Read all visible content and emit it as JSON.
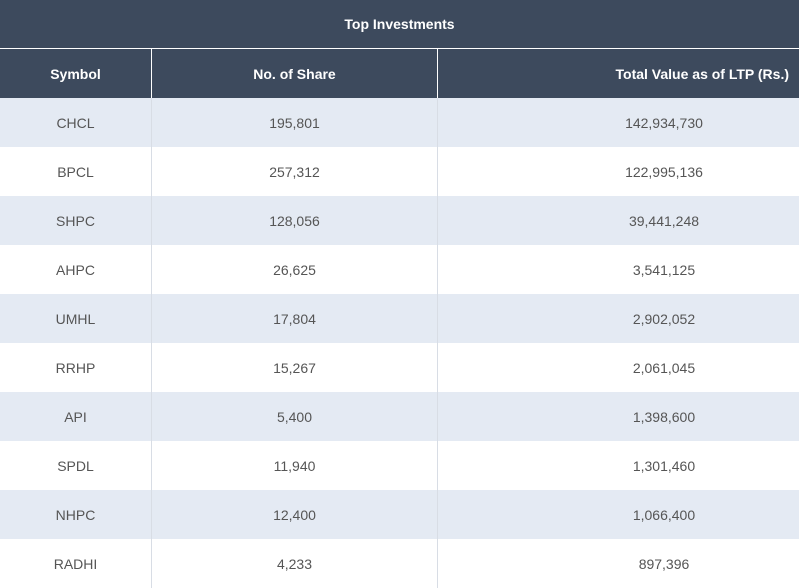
{
  "table": {
    "title": "Top Investments",
    "headers": {
      "symbol": "Symbol",
      "shares": "No. of Share",
      "value": "Total Value as of LTP (Rs.)"
    },
    "rows": [
      {
        "symbol": "CHCL",
        "shares": "195,801",
        "value": "142,934,730"
      },
      {
        "symbol": "BPCL",
        "shares": "257,312",
        "value": "122,995,136"
      },
      {
        "symbol": "SHPC",
        "shares": "128,056",
        "value": "39,441,248"
      },
      {
        "symbol": "AHPC",
        "shares": "26,625",
        "value": "3,541,125"
      },
      {
        "symbol": "UMHL",
        "shares": "17,804",
        "value": "2,902,052"
      },
      {
        "symbol": "RRHP",
        "shares": "15,267",
        "value": "2,061,045"
      },
      {
        "symbol": "API",
        "shares": "5,400",
        "value": "1,398,600"
      },
      {
        "symbol": "SPDL",
        "shares": "11,940",
        "value": "1,301,460"
      },
      {
        "symbol": "NHPC",
        "shares": "12,400",
        "value": "1,066,400"
      },
      {
        "symbol": "RADHI",
        "shares": "4,233",
        "value": "897,396"
      }
    ]
  },
  "colors": {
    "header_bg": "#3d4a5d",
    "row_alt_bg": "#e4eaf3",
    "text": "#555555"
  }
}
